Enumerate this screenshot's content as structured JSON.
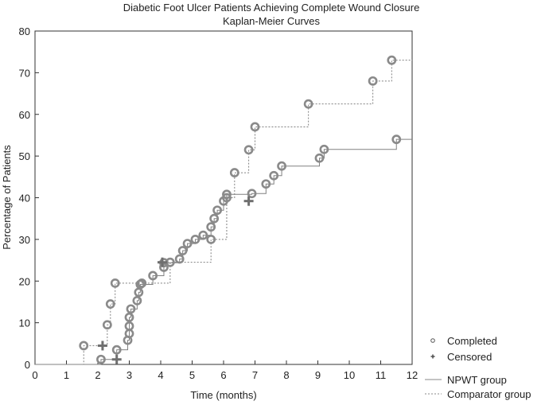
{
  "chart_data": {
    "type": "line",
    "title": "Diabetic Foot Ulcer Patients Achieving Complete Wound Closure",
    "subtitle": "Kaplan-Meier Curves",
    "xlabel": "Time (months)",
    "ylabel": "Percentage of Patients",
    "xlim": [
      0,
      12
    ],
    "ylim": [
      0,
      80
    ],
    "x_ticks": [
      0,
      1,
      2,
      3,
      4,
      5,
      6,
      7,
      8,
      9,
      10,
      11,
      12
    ],
    "y_ticks": [
      0,
      10,
      20,
      30,
      40,
      50,
      60,
      70,
      80
    ],
    "grid": false,
    "legend": {
      "placement": "bottom-right",
      "markers": [
        {
          "label": "Completed",
          "symbol": "circle"
        },
        {
          "label": "Censored",
          "symbol": "plus"
        }
      ],
      "lines": [
        {
          "label": "NPWT group",
          "style": "solid"
        },
        {
          "label": "Comparator group",
          "style": "dotted"
        }
      ]
    },
    "series": [
      {
        "name": "NPWT group",
        "line_style": "solid",
        "color": "#808080",
        "steps": [
          [
            0,
            0
          ],
          [
            2.1,
            1.2
          ],
          [
            2.6,
            3.5
          ],
          [
            2.95,
            5.8
          ],
          [
            3.0,
            7.4
          ],
          [
            3.0,
            9.2
          ],
          [
            3.0,
            11.3
          ],
          [
            3.05,
            13.3
          ],
          [
            3.25,
            15.3
          ],
          [
            3.3,
            17.3
          ],
          [
            3.35,
            19.2
          ],
          [
            3.75,
            21.3
          ],
          [
            4.1,
            23.3
          ],
          [
            4.1,
            24.4
          ],
          [
            4.6,
            25.3
          ],
          [
            4.7,
            27.3
          ],
          [
            4.85,
            29.0
          ],
          [
            5.1,
            30.0
          ],
          [
            5.35,
            31.0
          ],
          [
            5.6,
            33.0
          ],
          [
            5.7,
            35.0
          ],
          [
            5.8,
            37.0
          ],
          [
            6.0,
            39.2
          ],
          [
            6.1,
            40.8
          ],
          [
            6.9,
            41.0
          ],
          [
            7.35,
            43.3
          ],
          [
            7.6,
            45.3
          ],
          [
            7.85,
            47.6
          ],
          [
            9.05,
            49.5
          ],
          [
            9.2,
            51.6
          ],
          [
            11.5,
            54.0
          ],
          [
            12,
            54.0
          ]
        ],
        "completed": [
          [
            2.1,
            1.2
          ],
          [
            2.6,
            3.5
          ],
          [
            2.95,
            5.8
          ],
          [
            3.0,
            7.4
          ],
          [
            3.0,
            9.2
          ],
          [
            3.0,
            11.3
          ],
          [
            3.05,
            13.3
          ],
          [
            3.25,
            15.3
          ],
          [
            3.3,
            17.3
          ],
          [
            3.35,
            19.2
          ],
          [
            3.75,
            21.3
          ],
          [
            4.1,
            23.3
          ],
          [
            4.1,
            24.4
          ],
          [
            4.6,
            25.3
          ],
          [
            4.7,
            27.3
          ],
          [
            4.85,
            29.0
          ],
          [
            5.1,
            30.0
          ],
          [
            5.35,
            31.0
          ],
          [
            5.6,
            33.0
          ],
          [
            5.7,
            35.0
          ],
          [
            5.8,
            37.0
          ],
          [
            6.0,
            39.2
          ],
          [
            6.1,
            40.8
          ],
          [
            6.9,
            41.0
          ],
          [
            7.35,
            43.3
          ],
          [
            7.6,
            45.3
          ],
          [
            7.85,
            47.6
          ],
          [
            9.05,
            49.5
          ],
          [
            9.2,
            51.6
          ],
          [
            11.5,
            54.0
          ]
        ],
        "censored": [
          [
            2.6,
            1.2
          ],
          [
            6.8,
            39.2
          ]
        ]
      },
      {
        "name": "Comparator group",
        "line_style": "dotted",
        "color": "#808080",
        "steps": [
          [
            0,
            0
          ],
          [
            1.55,
            4.5
          ],
          [
            2.3,
            9.5
          ],
          [
            2.4,
            14.5
          ],
          [
            2.55,
            19.5
          ],
          [
            3.4,
            19.5
          ],
          [
            4.3,
            24.5
          ],
          [
            5.6,
            30.0
          ],
          [
            6.1,
            40.0
          ],
          [
            6.35,
            46.0
          ],
          [
            6.8,
            51.5
          ],
          [
            7.0,
            57.0
          ],
          [
            8.7,
            62.5
          ],
          [
            10.75,
            68.0
          ],
          [
            11.35,
            73.0
          ],
          [
            12,
            73.0
          ]
        ],
        "completed": [
          [
            1.55,
            4.5
          ],
          [
            2.3,
            9.5
          ],
          [
            2.4,
            14.5
          ],
          [
            2.55,
            19.5
          ],
          [
            3.4,
            19.5
          ],
          [
            4.3,
            24.5
          ],
          [
            5.6,
            30.0
          ],
          [
            6.1,
            40.0
          ],
          [
            6.35,
            46.0
          ],
          [
            6.8,
            51.5
          ],
          [
            7.0,
            57.0
          ],
          [
            8.7,
            62.5
          ],
          [
            10.75,
            68.0
          ],
          [
            11.35,
            73.0
          ]
        ],
        "censored": [
          [
            2.15,
            4.5
          ],
          [
            4.05,
            24.5
          ]
        ]
      }
    ]
  }
}
